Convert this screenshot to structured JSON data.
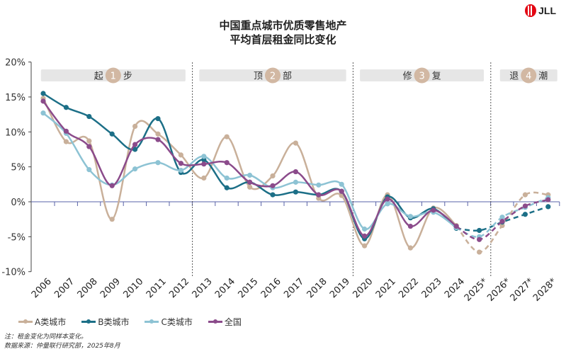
{
  "title_lines": [
    "中国重点城市优质零售地产",
    "平均首层租金同比变化"
  ],
  "logo_text": "JLL",
  "notes": [
    "注：租金变化为同样本变化。",
    "数据来源：仲量联行研究部，2025年8月"
  ],
  "phases": [
    {
      "left": "起",
      "num": "1",
      "right": "步"
    },
    {
      "left": "顶",
      "num": "2",
      "right": "部"
    },
    {
      "left": "修",
      "num": "3",
      "right": "复"
    },
    {
      "left": "退",
      "num": "4",
      "right": "潮"
    }
  ],
  "chart_data": {
    "type": "line",
    "categories": [
      "2006",
      "2007",
      "2008",
      "2009",
      "2010",
      "2011",
      "2012",
      "2013",
      "2014",
      "2015",
      "2016",
      "2017",
      "2018",
      "2019",
      "2020",
      "2021",
      "2022",
      "2023",
      "2024",
      "2025*",
      "2026*",
      "2027*",
      "2028*"
    ],
    "ylim": [
      -10,
      20
    ],
    "yticks": [
      "-10%",
      "-5%",
      "0%",
      "5%",
      "10%",
      "15%",
      "20%"
    ],
    "forecast_from": "2024",
    "series": [
      {
        "name": "A类城市",
        "color": "#c9b09a",
        "values": [
          14.8,
          8.6,
          8.7,
          -2.5,
          10.8,
          9.7,
          6.7,
          3.4,
          9.3,
          2.1,
          3.7,
          8.4,
          0.5,
          0.9,
          -6.3,
          1.0,
          -6.6,
          -0.9,
          -3.4,
          -7.2,
          -3.4,
          1.0,
          1.0
        ]
      },
      {
        "name": "B类城市",
        "color": "#1c6f87",
        "values": [
          15.5,
          13.5,
          12.2,
          9.7,
          7.5,
          11.9,
          4.2,
          6.0,
          2.0,
          2.8,
          1.0,
          1.4,
          1.0,
          1.5,
          -5.3,
          0.7,
          -2.3,
          -1.0,
          -3.8,
          -4.1,
          -2.9,
          -1.8,
          -0.7
        ]
      },
      {
        "name": "C类城市",
        "color": "#8dc3d4",
        "values": [
          12.7,
          9.8,
          4.6,
          2.4,
          4.7,
          5.6,
          4.5,
          6.5,
          3.4,
          3.8,
          2.0,
          2.8,
          2.4,
          2.5,
          -3.9,
          -0.3,
          -2.1,
          -1.5,
          -3.7,
          -5.0,
          -2.2,
          -0.8,
          0.6
        ]
      },
      {
        "name": "全国",
        "color": "#8b4b8b",
        "values": [
          14.4,
          10.1,
          7.9,
          2.3,
          8.2,
          8.9,
          5.5,
          5.4,
          5.6,
          2.8,
          2.3,
          4.3,
          1.0,
          1.5,
          -4.9,
          0.4,
          -3.5,
          -1.2,
          -3.5,
          -5.4,
          -2.8,
          -0.6,
          0.3
        ]
      }
    ]
  }
}
